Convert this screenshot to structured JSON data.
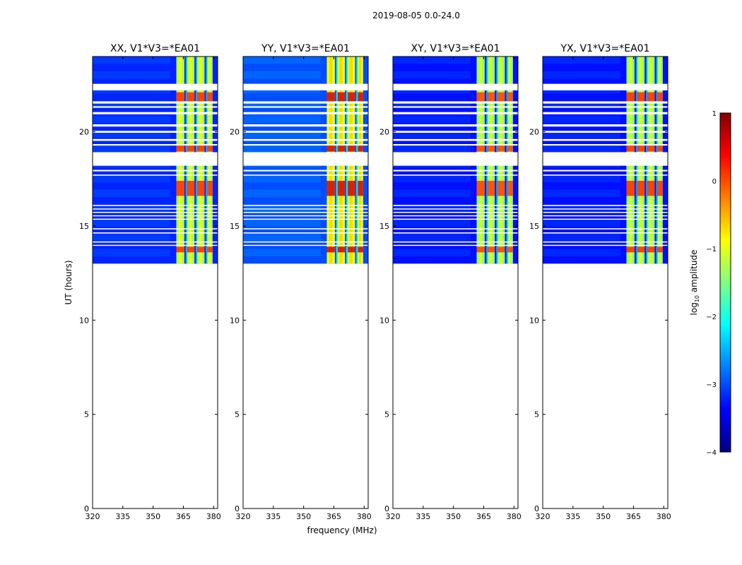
{
  "chart_data": {
    "type": "heatmap",
    "suptitle": "2019-08-05 0.0-24.0",
    "xlabel": "frequency (MHz)",
    "ylabel": "UT (hours)",
    "xlim": [
      320,
      382
    ],
    "ylim": [
      0,
      24
    ],
    "xticks": [
      "320",
      "335",
      "350",
      "365",
      "380"
    ],
    "yticks": [
      "0",
      "5",
      "10",
      "15",
      "20"
    ],
    "colorbar": {
      "label_main": "log",
      "label_sub": "10",
      "label_tail": " amplitude",
      "range": [
        -4,
        1
      ],
      "ticks": [
        "1",
        "0",
        "−1",
        "−2",
        "−3",
        "−4"
      ],
      "colors": [
        "#00007f",
        "#0000ff",
        "#007fff",
        "#00ffff",
        "#7fff7f",
        "#ffff00",
        "#ff7f00",
        "#ff0000",
        "#7f0000"
      ]
    },
    "panels": [
      {
        "title": "XX, V1*V3=*EA01",
        "background_log_amp": -3.2,
        "band_log_amp": -1.3,
        "hotspot_log_amp": 0.2
      },
      {
        "title": "YY, V1*V3=*EA01",
        "background_log_amp": -3.0,
        "band_log_amp": -1.0,
        "hotspot_log_amp": 0.6
      },
      {
        "title": "XY, V1*V3=*EA01",
        "background_log_amp": -3.3,
        "band_log_amp": -1.4,
        "hotspot_log_amp": 0.1
      },
      {
        "title": "YX, V1*V3=*EA01",
        "background_log_amp": -3.3,
        "band_log_amp": -1.4,
        "hotspot_log_amp": 0.2
      }
    ],
    "data_extent_ut": [
      13.0,
      24.0
    ],
    "rfi_band_mhz": [
      361.5,
      379.5
    ],
    "rfi_channels_mhz": [
      [
        361.5,
        365.5
      ],
      [
        366.5,
        370.5
      ],
      [
        371.5,
        375.5
      ],
      [
        376.5,
        379.5
      ]
    ],
    "flagged_ut_ranges": [
      [
        22.2,
        22.55
      ],
      [
        21.5,
        21.62
      ],
      [
        21.28,
        21.36
      ],
      [
        20.93,
        21.05
      ],
      [
        20.28,
        20.4
      ],
      [
        19.95,
        20.05
      ],
      [
        19.52,
        19.62
      ],
      [
        19.27,
        19.35
      ],
      [
        18.2,
        18.92
      ],
      [
        17.9,
        17.98
      ],
      [
        17.67,
        17.73
      ],
      [
        16.06,
        16.12
      ],
      [
        15.88,
        15.93
      ],
      [
        15.7,
        15.75
      ],
      [
        15.52,
        15.57
      ],
      [
        15.34,
        15.39
      ],
      [
        14.82,
        14.88
      ],
      [
        14.6,
        14.66
      ],
      [
        14.12,
        14.18
      ],
      [
        13.95,
        14.0
      ]
    ],
    "hot_ut_ranges": [
      [
        21.6,
        22.1
      ],
      [
        18.95,
        19.3
      ],
      [
        16.6,
        17.4
      ],
      [
        13.6,
        13.9
      ]
    ]
  }
}
